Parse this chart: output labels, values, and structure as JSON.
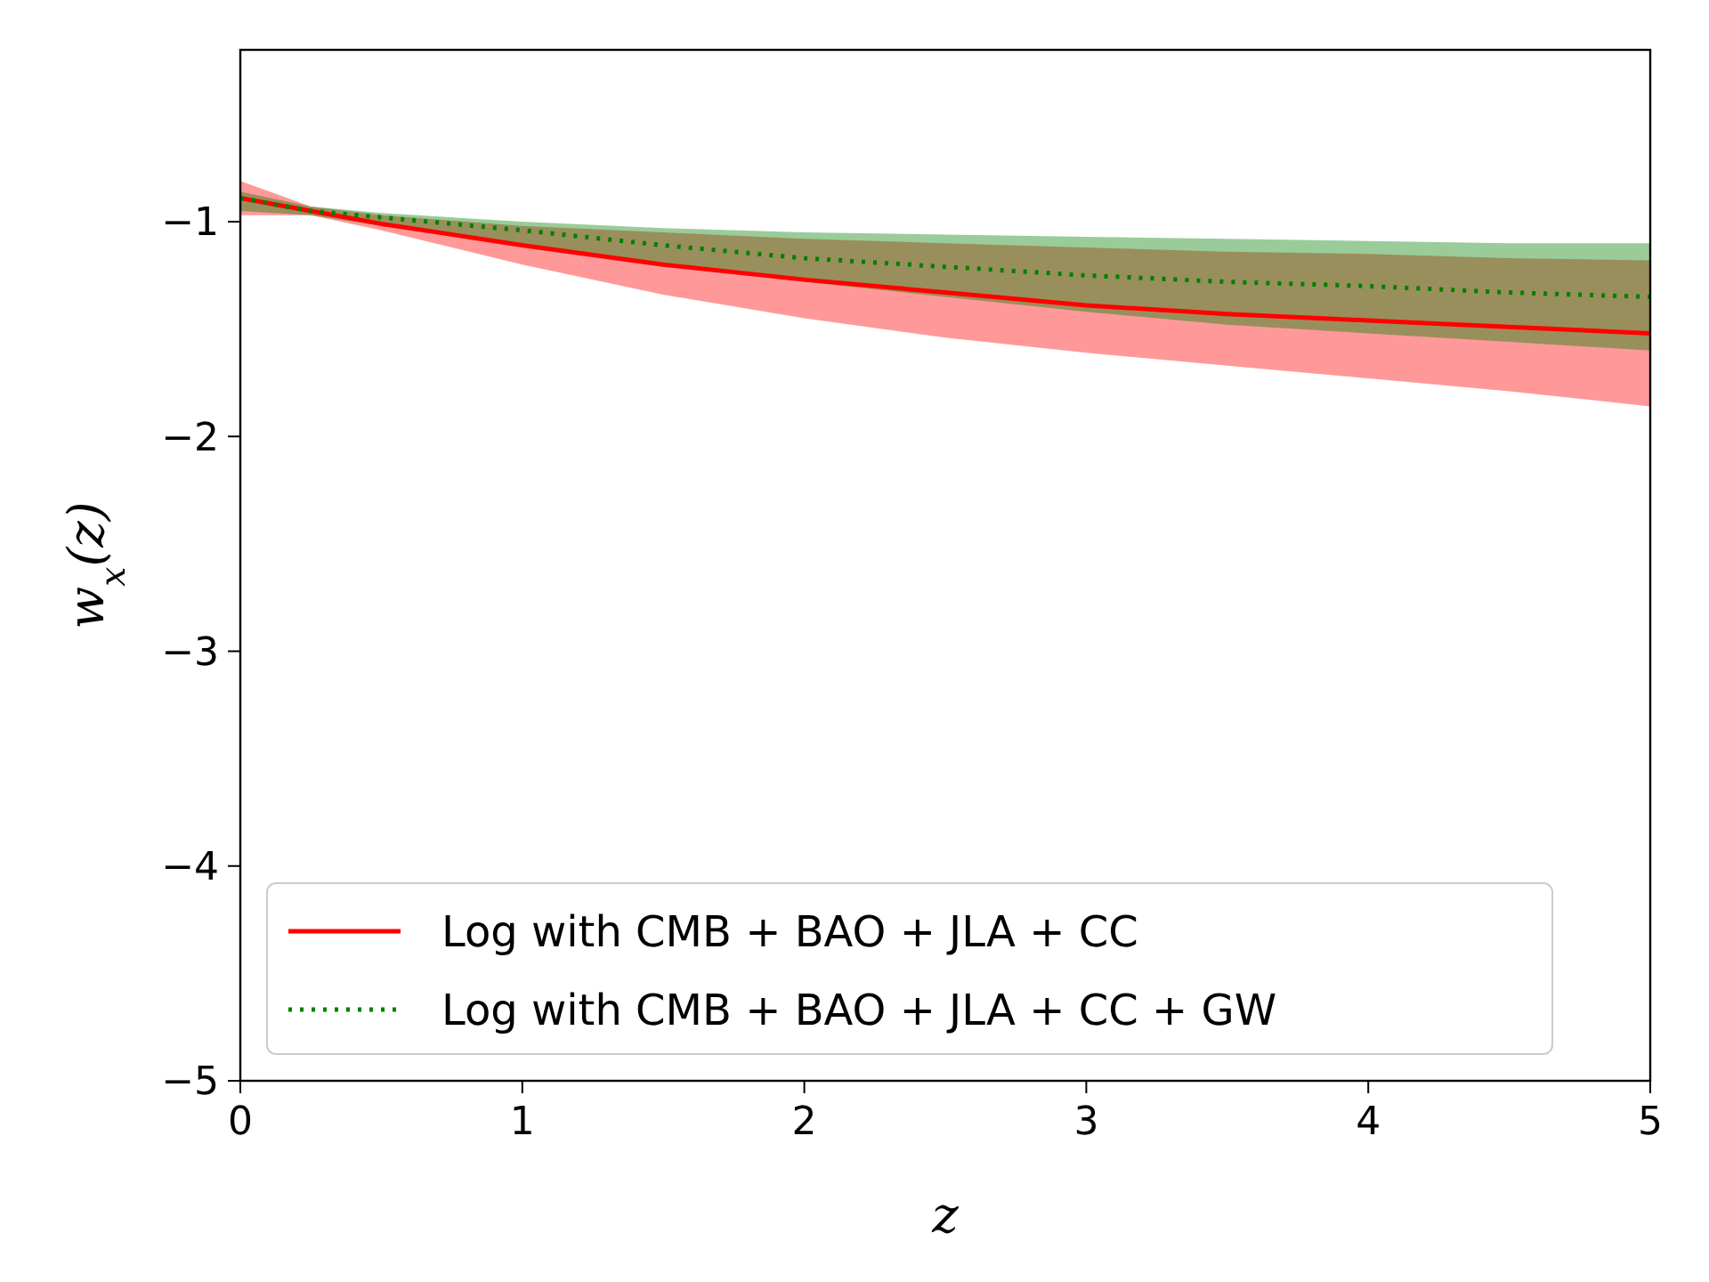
{
  "chart_data": {
    "type": "line",
    "xlabel": "z",
    "ylabel": "w$_{x}$(z)",
    "x": [
      0,
      0.25,
      0.5,
      1,
      1.5,
      2,
      2.5,
      3,
      3.5,
      4,
      4.5,
      5
    ],
    "series": [
      {
        "name": "Log with CMB + BAO + JLA + CC",
        "color": "#ff0000",
        "line_style": "solid",
        "values": [
          -0.89,
          -0.95,
          -1.01,
          -1.11,
          -1.2,
          -1.27,
          -1.33,
          -1.39,
          -1.43,
          -1.46,
          -1.49,
          -1.52
        ],
        "lower": [
          -0.97,
          -0.97,
          -1.04,
          -1.2,
          -1.34,
          -1.45,
          -1.54,
          -1.61,
          -1.67,
          -1.73,
          -1.79,
          -1.86
        ],
        "upper": [
          -0.81,
          -0.93,
          -0.97,
          -1.02,
          -1.05,
          -1.08,
          -1.1,
          -1.12,
          -1.14,
          -1.15,
          -1.17,
          -1.18
        ]
      },
      {
        "name": "Log with CMB + BAO + JLA + CC + GW",
        "color": "#008000",
        "line_style": "dotted",
        "values": [
          -0.89,
          -0.95,
          -0.98,
          -1.04,
          -1.11,
          -1.17,
          -1.21,
          -1.25,
          -1.28,
          -1.3,
          -1.33,
          -1.35
        ],
        "lower": [
          -0.95,
          -0.97,
          -1.02,
          -1.1,
          -1.2,
          -1.28,
          -1.35,
          -1.42,
          -1.48,
          -1.52,
          -1.56,
          -1.6
        ],
        "upper": [
          -0.86,
          -0.93,
          -0.96,
          -1,
          -1.03,
          -1.05,
          -1.06,
          -1.07,
          -1.08,
          -1.09,
          -1.1,
          -1.1
        ]
      }
    ],
    "xlim": [
      0,
      5
    ],
    "xticks": [
      0,
      1,
      2,
      3,
      4,
      5
    ],
    "ylim": [
      -5,
      -0.2
    ],
    "yticks": [
      {
        "value": -5,
        "label": "−5"
      },
      {
        "value": -4,
        "label": "−4"
      },
      {
        "value": -3,
        "label": "−3"
      },
      {
        "value": -2,
        "label": "−2"
      },
      {
        "value": -1,
        "label": "−1"
      }
    ],
    "grid": false,
    "legend": "bottom left"
  }
}
